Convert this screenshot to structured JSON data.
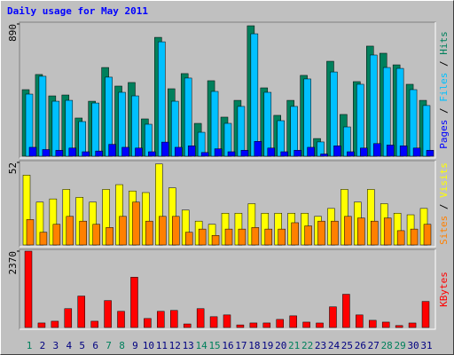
{
  "chart_data": [
    {
      "type": "bar",
      "title": "Daily usage for May 2011",
      "legend_separator": " / ",
      "ylim": [
        0,
        890
      ],
      "yticks": [
        890
      ],
      "series": [
        {
          "name": "Pages",
          "color": "#0000ff",
          "values": [
            60,
            45,
            40,
            55,
            30,
            35,
            80,
            60,
            55,
            30,
            95,
            60,
            70,
            25,
            50,
            30,
            40,
            100,
            55,
            30,
            40,
            60,
            15,
            70,
            30,
            55,
            85,
            75,
            70,
            55,
            40
          ]
        },
        {
          "name": "Files",
          "color": "#00c0ff",
          "values": [
            418,
            538,
            370,
            376,
            233,
            358,
            532,
            430,
            406,
            215,
            770,
            370,
            526,
            161,
            436,
            221,
            335,
            824,
            430,
            239,
            335,
            520,
            96,
            567,
            197,
            484,
            681,
            597,
            591,
            448,
            341
          ]
        },
        {
          "name": "Hits",
          "color": "#00805c",
          "values": [
            448,
            550,
            406,
            412,
            257,
            370,
            597,
            472,
            496,
            251,
            800,
            454,
            556,
            221,
            508,
            263,
            376,
            878,
            460,
            275,
            376,
            544,
            119,
            639,
            281,
            502,
            741,
            693,
            615,
            484,
            376
          ]
        }
      ]
    },
    {
      "type": "bar",
      "legend_separator": " / ",
      "ylim": [
        0,
        52
      ],
      "yticks": [
        52
      ],
      "series": [
        {
          "name": "Sites",
          "color": "#ff8000",
          "values": [
            16,
            8,
            13,
            18,
            15,
            13,
            11,
            18,
            27,
            15,
            18,
            18,
            8,
            10,
            6,
            10,
            10,
            11,
            10,
            10,
            14,
            12,
            15,
            15,
            18,
            17,
            15,
            17,
            9,
            10,
            13
          ]
        },
        {
          "name": "Visits",
          "color": "#ffff00",
          "values": [
            44,
            27,
            29,
            35,
            30,
            27,
            35,
            38,
            34,
            33,
            51,
            36,
            22,
            15,
            13,
            20,
            20,
            26,
            20,
            20,
            20,
            20,
            18,
            23,
            35,
            27,
            35,
            26,
            20,
            19,
            23
          ]
        }
      ]
    },
    {
      "type": "bar",
      "ylim": [
        0,
        2370
      ],
      "yticks": [
        2370
      ],
      "categories": [
        "1",
        "2",
        "3",
        "4",
        "5",
        "6",
        "7",
        "8",
        "9",
        "10",
        "11",
        "12",
        "13",
        "14",
        "15",
        "16",
        "17",
        "18",
        "19",
        "20",
        "21",
        "22",
        "23",
        "24",
        "25",
        "26",
        "27",
        "28",
        "29",
        "30",
        "31"
      ],
      "category_colors": [
        "#00805c",
        "#000080",
        "#000080",
        "#000080",
        "#000080",
        "#000080",
        "#00805c",
        "#00805c",
        "#000080",
        "#000080",
        "#000080",
        "#000080",
        "#000080",
        "#00805c",
        "#00805c",
        "#000080",
        "#000080",
        "#000080",
        "#000080",
        "#000080",
        "#00805c",
        "#00805c",
        "#000080",
        "#000080",
        "#000080",
        "#000080",
        "#000080",
        "#00805c",
        "#00805c",
        "#000080",
        "#000080"
      ],
      "series": [
        {
          "name": "KBytes",
          "color": "#ff0000",
          "values": [
            2370,
            140,
            195,
            585,
            976,
            195,
            836,
            502,
            1561,
            279,
            502,
            530,
            110,
            585,
            335,
            390,
            80,
            140,
            140,
            251,
            362,
            167,
            139,
            641,
            1032,
            390,
            223,
            167,
            60,
            139,
            809
          ]
        }
      ]
    }
  ]
}
